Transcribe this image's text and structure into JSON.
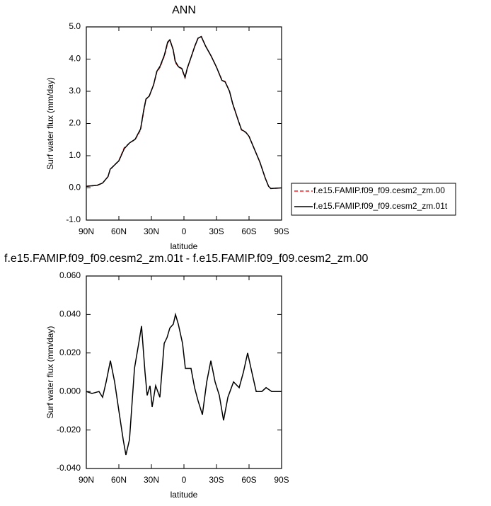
{
  "chart_data": [
    {
      "type": "line",
      "title": "ANN",
      "xlabel": "latitude",
      "ylabel": "Surf water flux (mm/day)",
      "x": [
        90,
        80,
        75,
        70,
        68,
        60,
        55,
        50,
        45,
        40,
        37,
        35,
        32,
        28,
        25,
        22,
        18,
        15,
        13,
        10,
        8,
        5,
        2,
        -1,
        -3,
        -7,
        -10,
        -13,
        -16,
        -20,
        -25,
        -30,
        -35,
        -38,
        -42,
        -45,
        -50,
        -53,
        -57,
        -60,
        -65,
        -70,
        -75,
        -78,
        -80,
        -90
      ],
      "series": [
        {
          "name": "f.e15.FAMIP.f09_f09.cesm2_zm.00",
          "color": "#e8292b",
          "linestyle": "dashed",
          "values": [
            0.05,
            0.08,
            0.15,
            0.35,
            0.57,
            0.85,
            1.25,
            1.4,
            1.5,
            1.8,
            2.4,
            2.75,
            2.85,
            3.2,
            3.6,
            3.75,
            4.1,
            4.5,
            4.6,
            4.3,
            3.9,
            3.75,
            3.7,
            3.42,
            3.7,
            4.1,
            4.4,
            4.65,
            4.7,
            4.4,
            4.1,
            3.75,
            3.35,
            3.3,
            3.0,
            2.6,
            2.1,
            1.8,
            1.72,
            1.6,
            1.2,
            0.8,
            0.3,
            0.05,
            -0.02,
            0.0
          ]
        },
        {
          "name": "f.e15.FAMIP.f09_f09.cesm2_zm.01t",
          "color": "#000000",
          "linestyle": "solid",
          "values": [
            0.05,
            0.08,
            0.15,
            0.35,
            0.58,
            0.84,
            1.22,
            1.4,
            1.51,
            1.83,
            2.43,
            2.76,
            2.85,
            3.2,
            3.62,
            3.78,
            4.13,
            4.53,
            4.6,
            4.3,
            3.93,
            3.76,
            3.71,
            3.43,
            3.71,
            4.1,
            4.4,
            4.65,
            4.7,
            4.4,
            4.1,
            3.75,
            3.34,
            3.29,
            3.0,
            2.61,
            2.1,
            1.81,
            1.73,
            1.6,
            1.2,
            0.8,
            0.3,
            0.05,
            -0.02,
            0.0
          ]
        }
      ],
      "xlim": [
        90,
        -90
      ],
      "xticks": [
        {
          "value": 90,
          "label": "90N"
        },
        {
          "value": 60,
          "label": "60N"
        },
        {
          "value": 30,
          "label": "30N"
        },
        0,
        {
          "value": -30,
          "label": "30S"
        },
        {
          "value": -60,
          "label": "60S"
        },
        {
          "value": -90,
          "label": "90S"
        }
      ],
      "ylim": [
        -1,
        5
      ],
      "yticks": [
        {
          "value": 5,
          "label": "5.0"
        },
        {
          "value": 4,
          "label": "4.0"
        },
        {
          "value": 3,
          "label": "3.0"
        },
        {
          "value": 2,
          "label": "2.0"
        },
        {
          "value": 1,
          "label": "1.0"
        },
        {
          "value": 0,
          "label": "0.0"
        },
        {
          "value": -1,
          "label": "-1.0"
        }
      ],
      "legend": "outside-right"
    },
    {
      "type": "line",
      "title": "f.e15.FAMIP.f09_f09.cesm2_zm.01t - f.e15.FAMIP.f09_f09.cesm2_zm.00",
      "xlabel": "latitude",
      "ylabel": "Surf water flux (mm/day)",
      "x": [
        90,
        84.8,
        78.3,
        75,
        71.7,
        67.8,
        63.9,
        60,
        56,
        53.5,
        50.2,
        45.6,
        41.7,
        39.1,
        35.9,
        33.9,
        31.3,
        29.3,
        26.1,
        22.2,
        18.2,
        15.6,
        13,
        9.8,
        7.8,
        5.2,
        1.3,
        -1.3,
        -3.9,
        -6.5,
        -9.8,
        -13.1,
        -17,
        -21,
        -24.8,
        -28.7,
        -32.6,
        -36.5,
        -40.5,
        -45.7,
        -50.9,
        -54.8,
        -58.7,
        -62.6,
        -66.6,
        -71.8,
        -75.7,
        -80.9,
        -90
      ],
      "values": [
        0.0,
        -0.001,
        0.0,
        -0.003,
        0.005,
        0.016,
        0.005,
        -0.01,
        -0.025,
        -0.033,
        -0.025,
        0.012,
        0.025,
        0.034,
        0.01,
        -0.002,
        0.003,
        -0.008,
        0.003,
        -0.003,
        0.025,
        0.028,
        0.033,
        0.035,
        0.04,
        0.035,
        0.025,
        0.012,
        0.012,
        0.012,
        0.002,
        -0.005,
        -0.012,
        0.005,
        0.016,
        0.005,
        -0.002,
        -0.015,
        -0.003,
        0.005,
        0.002,
        0.01,
        0.02,
        0.01,
        0.0,
        0.0,
        0.002,
        0.0,
        0.0
      ],
      "color": "#000000",
      "xlim": [
        90,
        -90
      ],
      "xticks": [
        {
          "value": 90,
          "label": "90N"
        },
        {
          "value": 60,
          "label": "60N"
        },
        {
          "value": 30,
          "label": "30N"
        },
        0,
        {
          "value": -30,
          "label": "30S"
        },
        {
          "value": -60,
          "label": "60S"
        },
        {
          "value": -90,
          "label": "90S"
        }
      ],
      "ylim": [
        -0.04,
        0.06
      ],
      "yticks": [
        {
          "value": 0.06,
          "label": "0.060"
        },
        {
          "value": 0.04,
          "label": "0.040"
        },
        {
          "value": 0.02,
          "label": "0.020"
        },
        {
          "value": 0,
          "label": "0.000"
        },
        {
          "value": -0.02,
          "label": "-0.020"
        },
        {
          "value": -0.04,
          "label": "-0.040"
        }
      ]
    }
  ]
}
